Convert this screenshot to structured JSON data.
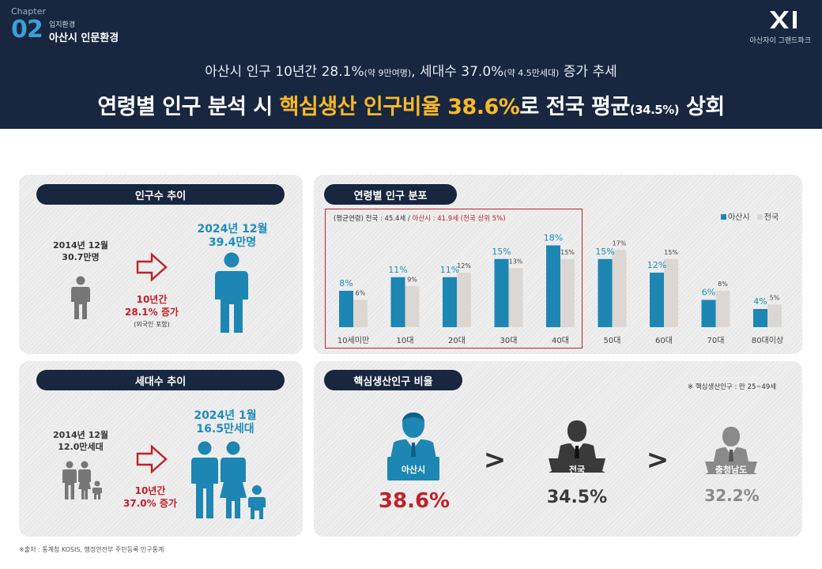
{
  "header": {
    "chapter_label": "Chapter",
    "chapter_number": "02",
    "section_sub": "입지환경",
    "section_title": "아산시 인문환경",
    "brand": "아산자이 그랜드파크",
    "summary_main_a": "아산시 인구 10년간 28.1%",
    "summary_small_a": "(약 9만여명)",
    "summary_main_b": ", 세대수 37.0%",
    "summary_small_b": "(약 4.5만세대)",
    "summary_main_c": " 증가 추세",
    "headline_a": "연령별 인구 분석 시 ",
    "headline_hl": "핵심생산 인구비율 38.6%",
    "headline_b": "로 전국 평균",
    "headline_small": "(34.5%)",
    "headline_c": " 상회"
  },
  "population": {
    "title": "인구수 추이",
    "before_l1": "2014년 12월",
    "before_l2": "30.7만명",
    "after_l1": "2024년 12월",
    "after_l2": "39.4만명",
    "growth_l1": "10년간",
    "growth_l2": "28.1% 증가",
    "growth_note": "(외국인 포함)"
  },
  "households": {
    "title": "세대수 추이",
    "before_l1": "2014년 12월",
    "before_l2": "12.0만세대",
    "after_l1": "2024년 1월",
    "after_l2": "16.5만세대",
    "growth_l1": "10년간",
    "growth_l2": "37.0% 증가"
  },
  "age_chart": {
    "title": "연령별 인구 분포",
    "note_a": "(평균연령) 전국 : 45.4세 / ",
    "note_b": "아산시 : 41.9세 (전국 상위 5%)",
    "legend_asan": "아산시",
    "legend_nat": "전국"
  },
  "chart_data": {
    "type": "bar",
    "categories": [
      "10세미만",
      "10대",
      "20대",
      "30대",
      "40대",
      "50대",
      "60대",
      "70대",
      "80대이상"
    ],
    "series": [
      {
        "name": "아산시",
        "values": [
          8,
          11,
          11,
          15,
          18,
          15,
          12,
          6,
          4
        ],
        "color": "#1d86b3"
      },
      {
        "name": "전국",
        "values": [
          6,
          9,
          12,
          13,
          15,
          17,
          15,
          8,
          5
        ],
        "color": "#dcd7d2"
      }
    ],
    "ylim": [
      0,
      20
    ],
    "legend": "top-right",
    "grid": false
  },
  "core": {
    "title": "핵심생산인구 비율",
    "note": "※ 핵심생산인구 : 만 25~49세",
    "items": [
      {
        "label": "아산시",
        "value": "38.6%"
      },
      {
        "label": "전국",
        "value": "34.5%"
      },
      {
        "label": "충청남도",
        "value": "32.2%"
      }
    ],
    "gt": ">"
  },
  "colors": {
    "navy": "#18263f",
    "accent_blue": "#1d8dba",
    "accent_red": "#c0202a",
    "highlight": "#f7b928"
  },
  "source": "※출처 : 통계청 KOSIS, 행정안전부 주민등록 인구통계"
}
